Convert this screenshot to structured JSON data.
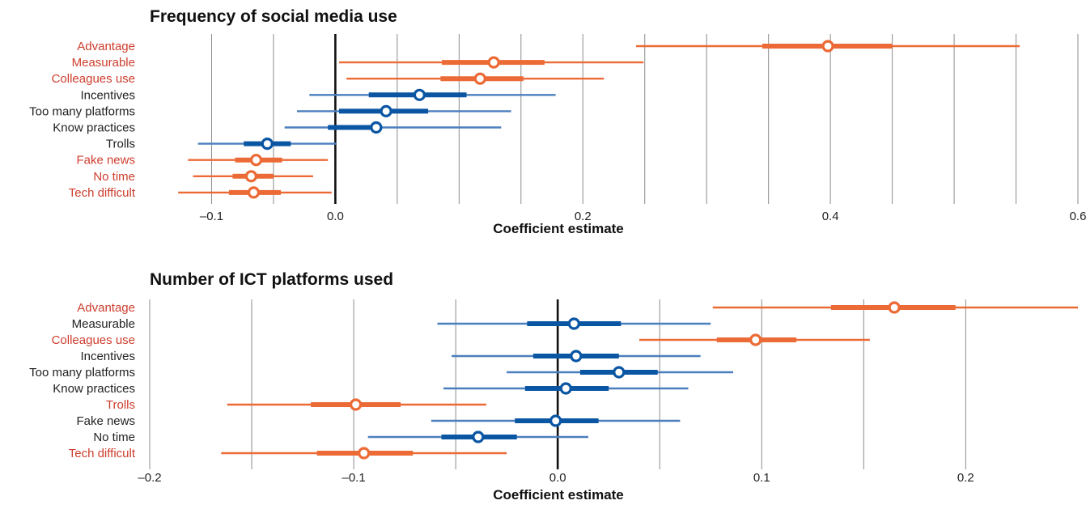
{
  "colors": {
    "highlight": "#ec6a36",
    "highlight_label": "#cd3d2d",
    "neutral": "#0a56a3",
    "neutral_thin": "#4a7fbe",
    "neutral_label": "#222222",
    "grid": "#8c8c8c",
    "zero_line": "#111111"
  },
  "chart_data": [
    {
      "type": "forest",
      "title": "Frequency of social media use",
      "xlabel": "Coefficient estimate",
      "xlim": [
        -0.15,
        0.6
      ],
      "grid": true,
      "gridlines": [
        -0.1,
        -0.05,
        0.0,
        0.05,
        0.1,
        0.15,
        0.2,
        0.25,
        0.3,
        0.35,
        0.4,
        0.45,
        0.5,
        0.55,
        0.6
      ],
      "ticks": [
        {
          "value": -0.1,
          "label": "–0.1"
        },
        {
          "value": 0.0,
          "label": "0.0"
        },
        {
          "value": 0.2,
          "label": "0.2"
        },
        {
          "value": 0.4,
          "label": "0.4"
        },
        {
          "value": 0.6,
          "label": "0.6"
        }
      ],
      "rows": [
        {
          "label": "Advantage",
          "estimate": 0.398,
          "inner": [
            0.345,
            0.45
          ],
          "outer": [
            0.243,
            0.553
          ],
          "significant": true
        },
        {
          "label": "Measurable",
          "estimate": 0.128,
          "inner": [
            0.086,
            0.169
          ],
          "outer": [
            0.003,
            0.249
          ],
          "significant": true
        },
        {
          "label": "Colleagues use",
          "estimate": 0.117,
          "inner": [
            0.085,
            0.152
          ],
          "outer": [
            0.009,
            0.217
          ],
          "significant": true
        },
        {
          "label": "Incentives",
          "estimate": 0.068,
          "inner": [
            0.027,
            0.106
          ],
          "outer": [
            -0.021,
            0.178
          ],
          "significant": false
        },
        {
          "label": "Too many platforms",
          "estimate": 0.041,
          "inner": [
            0.003,
            0.075
          ],
          "outer": [
            -0.031,
            0.142
          ],
          "significant": false
        },
        {
          "label": "Know practices",
          "estimate": 0.033,
          "inner": [
            -0.006,
            0.031
          ],
          "outer": [
            -0.041,
            0.134
          ],
          "significant": false
        },
        {
          "label": "Trolls",
          "estimate": -0.055,
          "inner": [
            -0.074,
            -0.036
          ],
          "outer": [
            -0.111,
            0.001
          ],
          "significant": false
        },
        {
          "label": "Fake news",
          "estimate": -0.064,
          "inner": [
            -0.081,
            -0.043
          ],
          "outer": [
            -0.119,
            -0.006
          ],
          "significant": true
        },
        {
          "label": "No time",
          "estimate": -0.068,
          "inner": [
            -0.083,
            -0.05
          ],
          "outer": [
            -0.115,
            -0.018
          ],
          "significant": true
        },
        {
          "label": "Tech difficult",
          "estimate": -0.066,
          "inner": [
            -0.086,
            -0.044
          ],
          "outer": [
            -0.127,
            -0.003
          ],
          "significant": true
        }
      ]
    },
    {
      "type": "forest",
      "title": "Number of ICT platforms used",
      "xlabel": "Coefficient estimate",
      "xlim": [
        -0.2,
        0.255
      ],
      "grid": true,
      "gridlines": [
        -0.2,
        -0.15,
        -0.1,
        -0.05,
        0.0,
        0.05,
        0.1,
        0.15,
        0.2
      ],
      "ticks": [
        {
          "value": -0.2,
          "label": "–0.2"
        },
        {
          "value": -0.1,
          "label": "–0.1"
        },
        {
          "value": 0.0,
          "label": "0.0"
        },
        {
          "value": 0.1,
          "label": "0.1"
        },
        {
          "value": 0.2,
          "label": "0.2"
        }
      ],
      "rows": [
        {
          "label": "Advantage",
          "estimate": 0.165,
          "inner": [
            0.134,
            0.195
          ],
          "outer": [
            0.076,
            0.255
          ],
          "significant": true
        },
        {
          "label": "Measurable",
          "estimate": 0.008,
          "inner": [
            -0.015,
            0.031
          ],
          "outer": [
            -0.059,
            0.075
          ],
          "significant": false
        },
        {
          "label": "Colleagues use",
          "estimate": 0.097,
          "inner": [
            0.078,
            0.117
          ],
          "outer": [
            0.04,
            0.153
          ],
          "significant": true
        },
        {
          "label": "Incentives",
          "estimate": 0.009,
          "inner": [
            -0.012,
            0.03
          ],
          "outer": [
            -0.052,
            0.07
          ],
          "significant": false
        },
        {
          "label": "Too many platforms",
          "estimate": 0.03,
          "inner": [
            0.011,
            0.049
          ],
          "outer": [
            -0.025,
            0.086
          ],
          "significant": false
        },
        {
          "label": "Know practices",
          "estimate": 0.004,
          "inner": [
            -0.016,
            0.025
          ],
          "outer": [
            -0.056,
            0.064
          ],
          "significant": false
        },
        {
          "label": "Trolls",
          "estimate": -0.099,
          "inner": [
            -0.121,
            -0.077
          ],
          "outer": [
            -0.162,
            -0.035
          ],
          "significant": true
        },
        {
          "label": "Fake news",
          "estimate": -0.001,
          "inner": [
            -0.021,
            0.02
          ],
          "outer": [
            -0.062,
            0.06
          ],
          "significant": false
        },
        {
          "label": "No time",
          "estimate": -0.039,
          "inner": [
            -0.057,
            -0.02
          ],
          "outer": [
            -0.093,
            0.015
          ],
          "significant": false
        },
        {
          "label": "Tech difficult",
          "estimate": -0.095,
          "inner": [
            -0.118,
            -0.071
          ],
          "outer": [
            -0.165,
            -0.025
          ],
          "significant": true
        }
      ]
    }
  ]
}
